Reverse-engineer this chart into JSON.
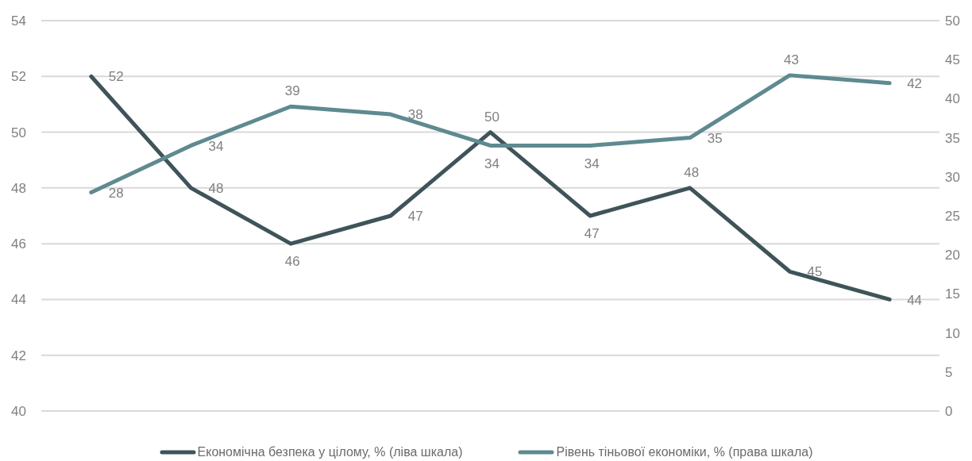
{
  "chart_data": {
    "type": "line",
    "categories": [
      null,
      null,
      null,
      null,
      null,
      null,
      null,
      null,
      null
    ],
    "series": [
      {
        "name": "Економічна безпека у цілому, % (ліва шкала)",
        "color": "#3f5459",
        "values": [
          52,
          48,
          46,
          47,
          50,
          47,
          48,
          45,
          44
        ]
      },
      {
        "name": "Рівень тіньової економіки, % (права шкала)",
        "color": "#5e8a90",
        "values": [
          28,
          34,
          39,
          38,
          34,
          34,
          35,
          43,
          42
        ],
        "axis": "y2"
      }
    ],
    "ylim": [
      40,
      54
    ],
    "yticks": [
      40,
      42,
      44,
      46,
      48,
      50,
      52,
      54
    ],
    "y2lim": [
      0,
      50
    ],
    "y2ticks": [
      0,
      5,
      10,
      15,
      20,
      25,
      30,
      35,
      40,
      45,
      50
    ],
    "grid": "y",
    "legend": "bottom",
    "data_labels": true,
    "marker": "none",
    "line_style": "solid"
  }
}
